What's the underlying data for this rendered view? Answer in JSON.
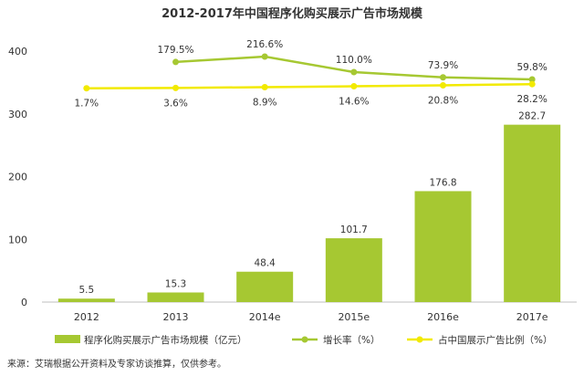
{
  "chart_data": {
    "type": "bar",
    "title": "2012-2017年中国程序化购买展示广告市场规模",
    "categories": [
      "2012",
      "2013",
      "2014e",
      "2015e",
      "2016e",
      "2017e"
    ],
    "ylim": [
      0,
      400
    ],
    "yticks": [
      0,
      100,
      200,
      300,
      400
    ],
    "grid": false,
    "legend_position": "bottom",
    "series": [
      {
        "name": "程序化购买展示广告市场规模（亿元）",
        "kind": "bar",
        "color": "#a6c832",
        "values": [
          5.5,
          15.3,
          48.4,
          101.7,
          176.8,
          282.7
        ],
        "labels": [
          "5.5",
          "15.3",
          "48.4",
          "101.7",
          "176.8",
          "282.7"
        ]
      },
      {
        "name": "增长率（%）",
        "kind": "line",
        "color": "#a6c832",
        "values": [
          null,
          179.5,
          216.6,
          110.0,
          73.9,
          59.8
        ],
        "labels": [
          "",
          "179.5%",
          "216.6%",
          "110.0%",
          "73.9%",
          "59.8%"
        ]
      },
      {
        "name": "占中国展示广告比例（%）",
        "kind": "line",
        "color": "#f2ea00",
        "values": [
          1.7,
          3.6,
          8.9,
          14.6,
          20.8,
          28.2
        ],
        "labels": [
          "1.7%",
          "3.6%",
          "8.9%",
          "14.6%",
          "20.8%",
          "28.2%"
        ]
      }
    ],
    "source": "来源：艾瑞根据公开资料及专家访谈推算，仅供参考。"
  }
}
